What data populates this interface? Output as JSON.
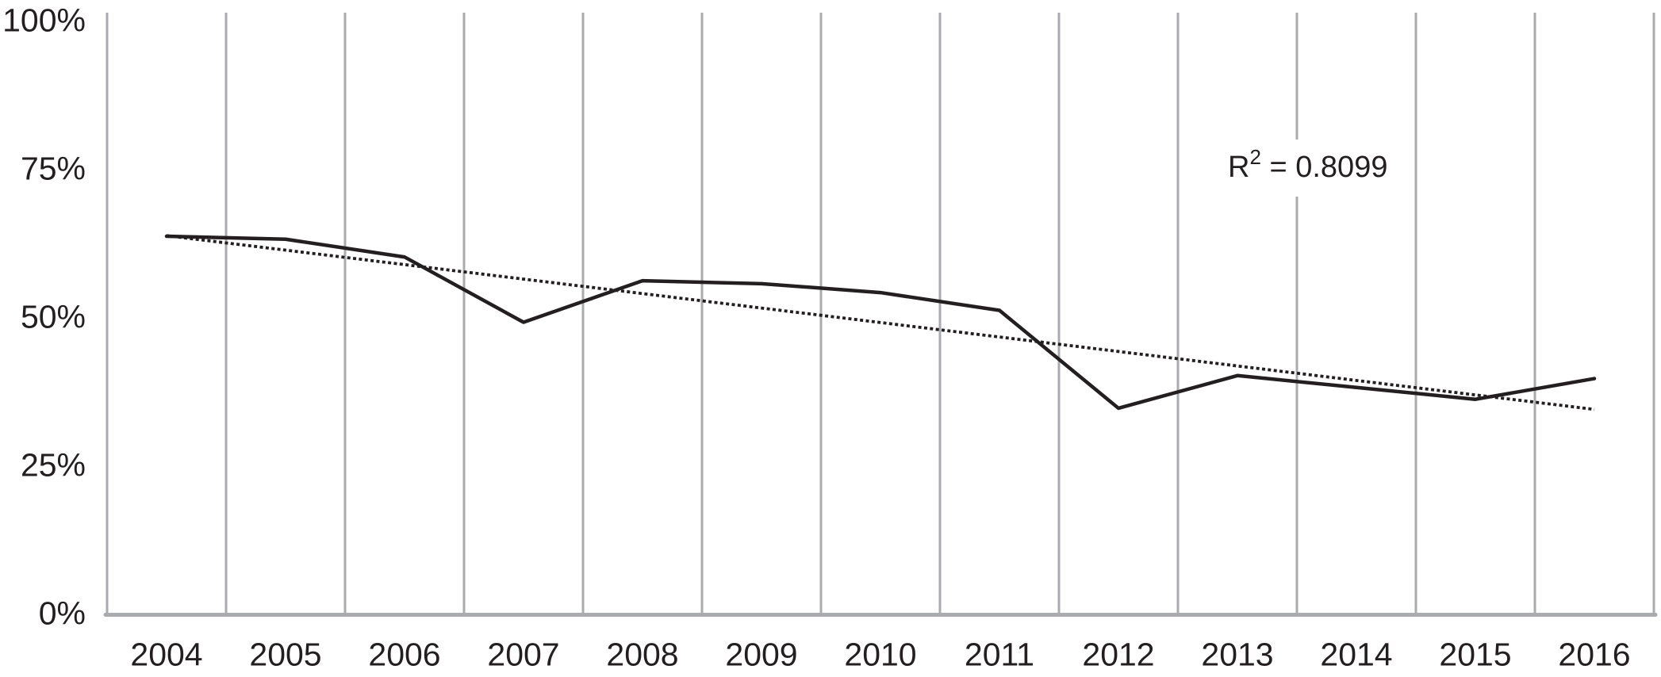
{
  "chart_data": {
    "type": "line",
    "title": "",
    "xlabel": "",
    "ylabel": "",
    "categories": [
      "2004",
      "2005",
      "2006",
      "2007",
      "2008",
      "2009",
      "2010",
      "2011",
      "2012",
      "2013",
      "2014",
      "2015",
      "2016"
    ],
    "series": [
      {
        "name": "observed-percentage",
        "line_style": "solid",
        "color": "#231f20",
        "values": [
          63.5,
          63,
          60,
          49,
          56,
          55.5,
          54,
          51,
          34.5,
          40,
          38,
          36,
          39.5
        ]
      },
      {
        "name": "linear-trendline",
        "line_style": "dotted",
        "color": "#231f20",
        "start_value": 63.6,
        "end_value": 34.3,
        "r_squared": 0.8099
      }
    ],
    "ylim": [
      0,
      100
    ],
    "y_ticks": [
      {
        "value": 100,
        "label": "100%"
      },
      {
        "value": 75,
        "label": "75%"
      },
      {
        "value": 50,
        "label": "50%"
      },
      {
        "value": 25,
        "label": "25%"
      },
      {
        "value": 0,
        "label": "0%"
      }
    ],
    "grid": {
      "vertical": true,
      "horizontal": false
    },
    "legend_position": "none",
    "annotation": {
      "full_text": "R² = 0.8099",
      "text_base": "R",
      "text_sup": "2",
      "text_rest": " = 0.8099"
    }
  },
  "colors": {
    "data_line": "#231f20",
    "trend_line": "#231f20",
    "grid": "#a9abae",
    "axis": "#a9abae",
    "text": "#231f20",
    "background": "#ffffff"
  }
}
